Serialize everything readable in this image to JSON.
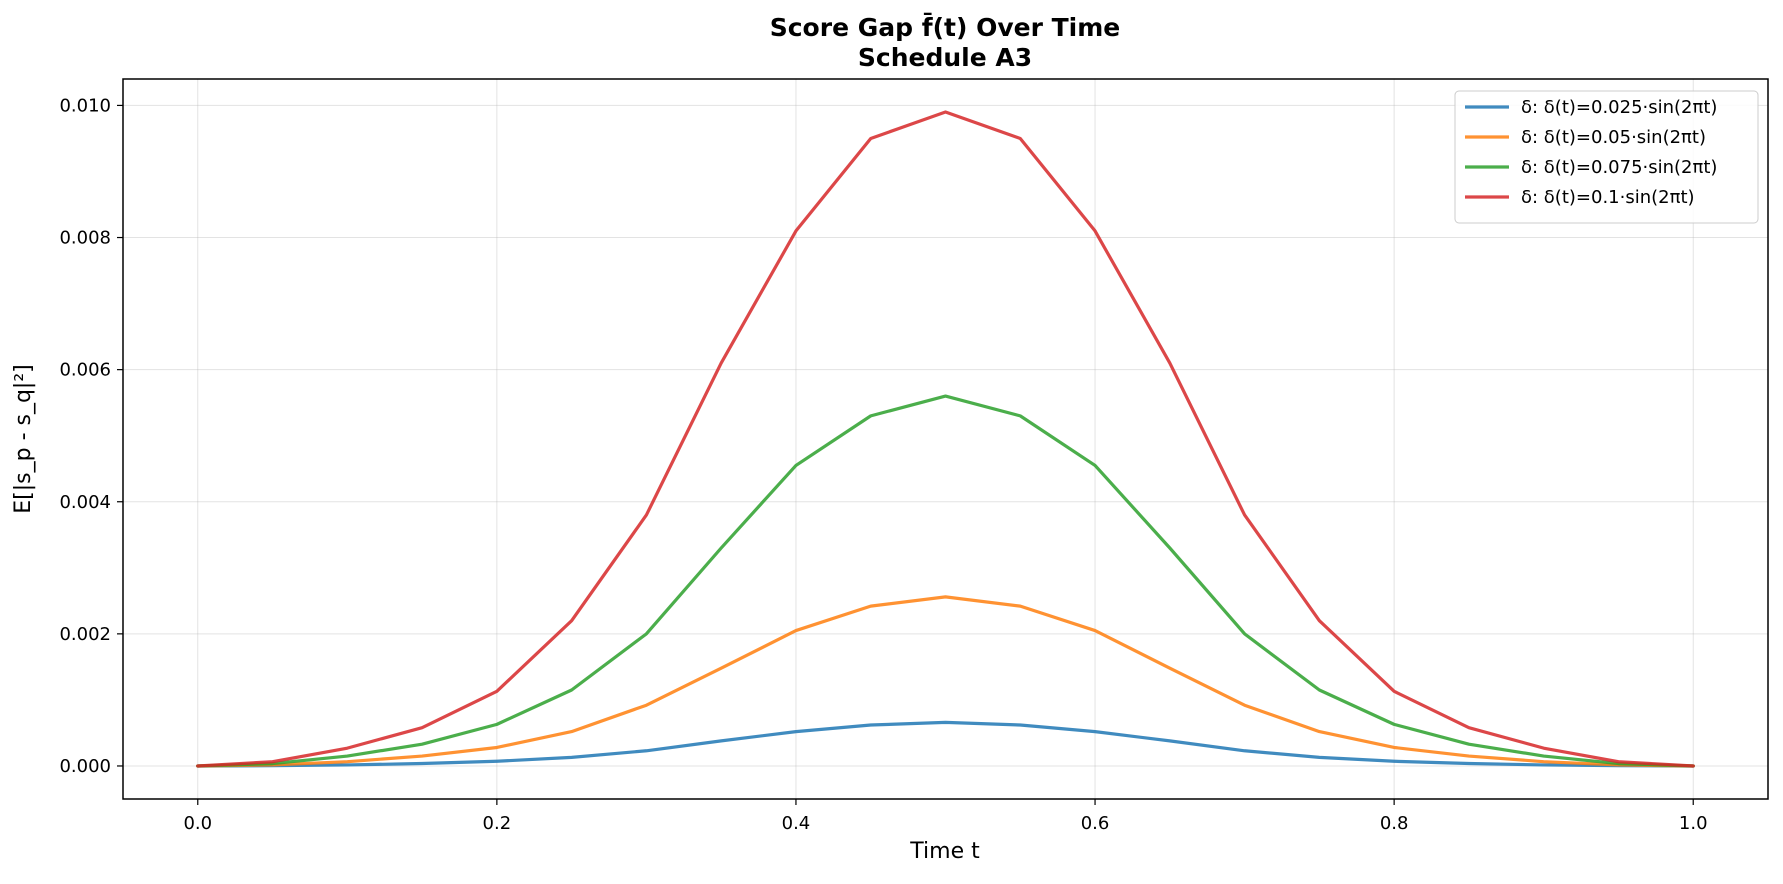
{
  "chart_data": {
    "type": "line",
    "title": "Score Gap f̄(t) Over Time",
    "subtitle": "Schedule A3",
    "xlabel": "Time t",
    "ylabel": "E[|s_p - s_q|²]",
    "xlim": [
      -0.05,
      1.05
    ],
    "ylim": [
      -0.0005,
      0.0104
    ],
    "x_ticks": [
      0.0,
      0.2,
      0.4,
      0.6,
      0.8,
      1.0
    ],
    "x_tick_labels": [
      "0.0",
      "0.2",
      "0.4",
      "0.6",
      "0.8",
      "1.0"
    ],
    "y_ticks": [
      0.0,
      0.002,
      0.004,
      0.006,
      0.008,
      0.01
    ],
    "y_tick_labels": [
      "0.000",
      "0.002",
      "0.004",
      "0.006",
      "0.008",
      "0.010"
    ],
    "grid": true,
    "legend_position": "top-right",
    "x": [
      0.0,
      0.05,
      0.1,
      0.15,
      0.2,
      0.25,
      0.3,
      0.35,
      0.4,
      0.45,
      0.5,
      0.55,
      0.6,
      0.65,
      0.7,
      0.75,
      0.8,
      0.85,
      0.9,
      0.95,
      1.0
    ],
    "series": [
      {
        "name": "δ: δ(t)=0.025·sin(2πt)",
        "color": "#1f77b4",
        "values": [
          0.0,
          4e-06,
          1.6e-05,
          3.7e-05,
          7.1e-05,
          0.00013,
          0.00023,
          0.00038,
          0.00052,
          0.00062,
          0.00066,
          0.00062,
          0.00052,
          0.00038,
          0.00023,
          0.00013,
          7.1e-05,
          3.7e-05,
          1.6e-05,
          4e-06,
          0.0
        ]
      },
      {
        "name": "δ: δ(t)=0.05·sin(2πt)",
        "color": "#ff7f0e",
        "values": [
          0.0,
          1.6e-05,
          6.5e-05,
          0.00015,
          0.00028,
          0.00052,
          0.00092,
          0.00148,
          0.00205,
          0.00242,
          0.00256,
          0.00242,
          0.00205,
          0.00148,
          0.00092,
          0.00052,
          0.00028,
          0.00015,
          6.5e-05,
          1.6e-05,
          0.0
        ]
      },
      {
        "name": "δ: δ(t)=0.075·sin(2πt)",
        "color": "#2ca02c",
        "values": [
          0.0,
          3.6e-05,
          0.00015,
          0.00033,
          0.00063,
          0.00115,
          0.002,
          0.0033,
          0.00455,
          0.0053,
          0.0056,
          0.0053,
          0.00455,
          0.0033,
          0.002,
          0.00115,
          0.00063,
          0.00033,
          0.00015,
          3.6e-05,
          0.0
        ]
      },
      {
        "name": "δ: δ(t)=0.1·sin(2πt)",
        "color": "#d62728",
        "values": [
          0.0,
          6.4e-05,
          0.00027,
          0.00058,
          0.00113,
          0.0022,
          0.0038,
          0.0061,
          0.0081,
          0.0095,
          0.0099,
          0.0095,
          0.0081,
          0.0061,
          0.0038,
          0.0022,
          0.00113,
          0.00058,
          0.00027,
          6.4e-05,
          0.0
        ]
      }
    ]
  }
}
